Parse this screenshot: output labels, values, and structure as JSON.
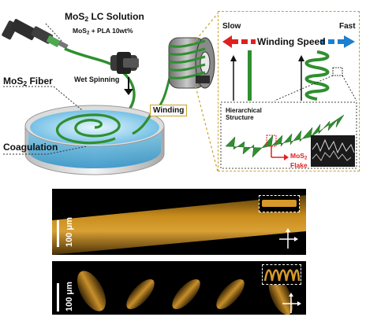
{
  "schematic": {
    "solution_title_pre": "MoS",
    "solution_title_sub": "2",
    "solution_title_post": " LC Solution",
    "solution_formula_pre": "MoS",
    "solution_formula_sub": "2",
    "solution_formula_post": " + PLA 10wt%",
    "wet_spinning": "Wet Spinning",
    "fiber_label_pre": "MoS",
    "fiber_label_sub": "2",
    "fiber_label_post": " Fiber",
    "coagulation": "Coagulation",
    "winding": "Winding"
  },
  "winding_panel": {
    "slow": "Slow",
    "fast": "Fast",
    "speed_title": "Winding Speed",
    "hierarchical_line1": "Hierarchical",
    "hierarchical_line2": "Structure",
    "flake_line1_pre": "MoS",
    "flake_line1_sub": "2",
    "flake_line2": "Flake"
  },
  "micrographs": {
    "scale_label": "100 μm",
    "top_scale_label": "100 μm",
    "bottom_scale_label": "100 μm"
  },
  "colors": {
    "fiber_green": "#2f8f2f",
    "bath_blue": "#9ad6ee",
    "highlight_gold": "#c9a227",
    "arrow_red": "#e02020",
    "arrow_blue": "#1e7fd0"
  }
}
